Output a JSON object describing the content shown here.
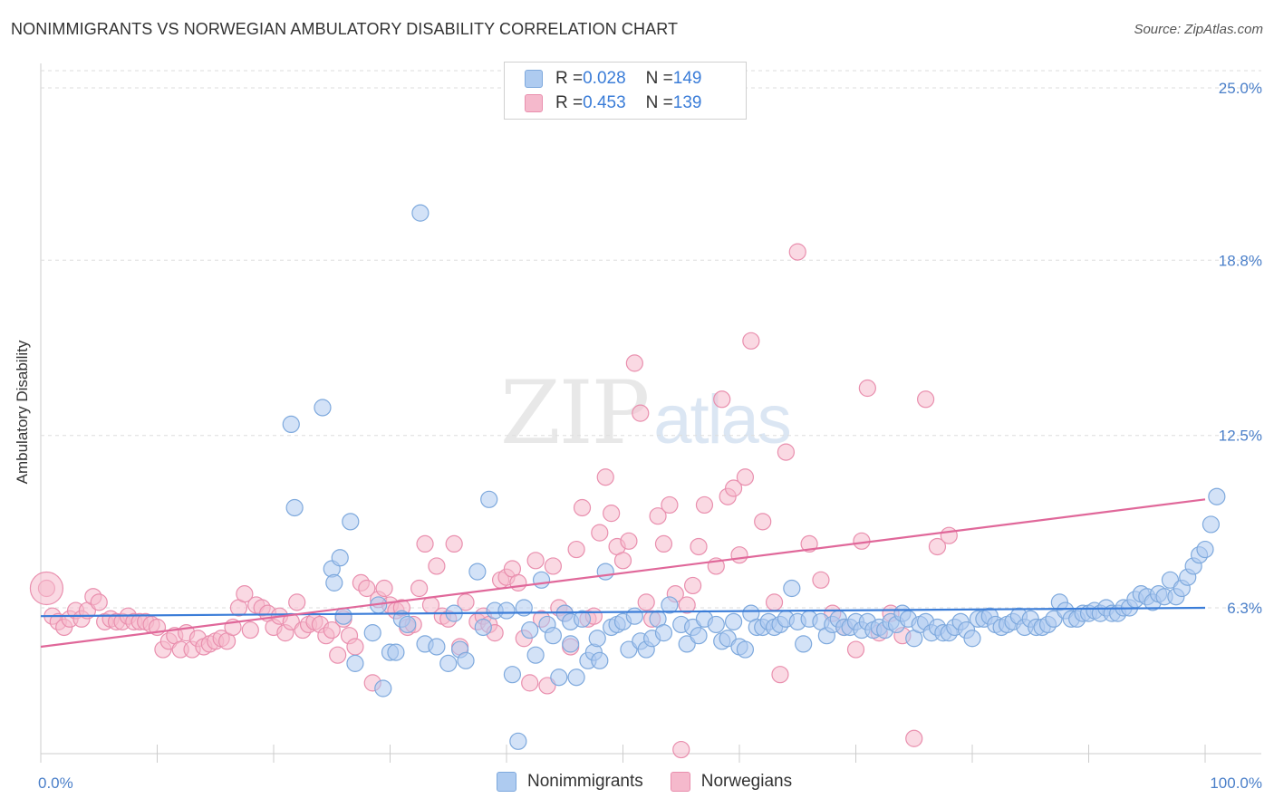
{
  "header": {
    "title": "NONIMMIGRANTS VS NORWEGIAN AMBULATORY DISABILITY CORRELATION CHART",
    "source": "Source: ZipAtlas.com"
  },
  "watermark": {
    "zip": "ZIP",
    "atlas": "atlas"
  },
  "legend": {
    "rows": [
      {
        "r_label": "R = ",
        "r_value": "0.028",
        "n_label": "N = ",
        "n_value": "149"
      },
      {
        "r_label": "R = ",
        "r_value": "0.453",
        "n_label": "N = ",
        "n_value": "139"
      }
    ]
  },
  "bottom_legend": {
    "items": [
      "Nonimmigrants",
      "Norwegians"
    ]
  },
  "colors": {
    "blue_fill": "#aecbf0",
    "blue_stroke": "#7ea9dd",
    "blue_line": "#3b7dd8",
    "pink_fill": "#f5b9cc",
    "pink_stroke": "#e98fae",
    "pink_line": "#e0689a",
    "tick_text": "#4a7fc9",
    "grid": "#dddddd"
  },
  "chart_data": {
    "type": "scatter",
    "title": "NONIMMIGRANTS VS NORWEGIAN AMBULATORY DISABILITY CORRELATION CHART",
    "xlabel": "",
    "ylabel": "Ambulatory Disability",
    "xlim": [
      0,
      100
    ],
    "ylim": [
      0,
      26
    ],
    "x_tick_labels": [
      "0.0%",
      "100.0%"
    ],
    "y_ticks": [
      6.3,
      12.5,
      18.8,
      25.0
    ],
    "y_tick_labels": [
      "6.3%",
      "12.5%",
      "18.8%",
      "25.0%"
    ],
    "grid": "horizontal dashed",
    "legend_position": "top-center",
    "series": [
      {
        "name": "Nonimmigrants",
        "trend": [
          [
            0,
            6.0
          ],
          [
            100,
            6.3
          ]
        ],
        "points": [
          [
            21.5,
            12.9
          ],
          [
            21.8,
            9.9
          ],
          [
            24.2,
            13.5
          ],
          [
            25.0,
            7.7
          ],
          [
            25.2,
            7.2
          ],
          [
            25.7,
            8.1
          ],
          [
            26.0,
            6.0
          ],
          [
            26.6,
            9.4
          ],
          [
            27.0,
            4.3
          ],
          [
            28.5,
            5.4
          ],
          [
            29.0,
            6.4
          ],
          [
            29.4,
            3.4
          ],
          [
            30.0,
            4.7
          ],
          [
            30.5,
            4.7
          ],
          [
            31.0,
            5.9
          ],
          [
            31.5,
            5.7
          ],
          [
            32.6,
            20.5
          ],
          [
            33.0,
            5.0
          ],
          [
            34.0,
            4.9
          ],
          [
            35.0,
            4.3
          ],
          [
            35.5,
            6.1
          ],
          [
            36.0,
            4.8
          ],
          [
            36.5,
            4.4
          ],
          [
            37.5,
            7.6
          ],
          [
            38.0,
            5.6
          ],
          [
            38.5,
            10.2
          ],
          [
            39.0,
            6.2
          ],
          [
            40.0,
            6.2
          ],
          [
            40.5,
            3.9
          ],
          [
            41.0,
            1.5
          ],
          [
            41.5,
            6.3
          ],
          [
            42.0,
            5.5
          ],
          [
            42.5,
            4.6
          ],
          [
            43.0,
            7.3
          ],
          [
            43.5,
            5.7
          ],
          [
            44.0,
            5.3
          ],
          [
            44.5,
            3.8
          ],
          [
            45.0,
            6.1
          ],
          [
            45.5,
            5.0
          ],
          [
            45.5,
            5.8
          ],
          [
            46.0,
            3.8
          ],
          [
            46.5,
            5.9
          ],
          [
            47.0,
            4.4
          ],
          [
            47.5,
            4.7
          ],
          [
            47.8,
            5.2
          ],
          [
            48.0,
            4.4
          ],
          [
            48.5,
            7.6
          ],
          [
            49.0,
            5.6
          ],
          [
            49.5,
            5.7
          ],
          [
            50.0,
            5.8
          ],
          [
            50.5,
            4.8
          ],
          [
            51.0,
            6.0
          ],
          [
            51.5,
            5.1
          ],
          [
            52.0,
            4.8
          ],
          [
            52.5,
            5.2
          ],
          [
            53.0,
            5.9
          ],
          [
            53.5,
            5.4
          ],
          [
            54.0,
            6.4
          ],
          [
            55.0,
            5.7
          ],
          [
            55.5,
            5.0
          ],
          [
            56.0,
            5.6
          ],
          [
            56.5,
            5.3
          ],
          [
            57.0,
            5.9
          ],
          [
            58.0,
            5.7
          ],
          [
            58.5,
            5.1
          ],
          [
            59.0,
            5.2
          ],
          [
            59.5,
            5.8
          ],
          [
            60.0,
            4.9
          ],
          [
            60.5,
            4.8
          ],
          [
            61.0,
            6.1
          ],
          [
            61.5,
            5.6
          ],
          [
            62.0,
            5.6
          ],
          [
            62.5,
            5.8
          ],
          [
            63.0,
            5.6
          ],
          [
            63.5,
            5.7
          ],
          [
            64.0,
            5.9
          ],
          [
            64.5,
            7.0
          ],
          [
            65.0,
            5.8
          ],
          [
            65.5,
            5.0
          ],
          [
            66.0,
            5.9
          ],
          [
            67.0,
            5.8
          ],
          [
            67.5,
            5.3
          ],
          [
            68.0,
            5.7
          ],
          [
            68.5,
            5.9
          ],
          [
            69.0,
            5.6
          ],
          [
            69.5,
            5.6
          ],
          [
            70.0,
            5.8
          ],
          [
            70.5,
            5.5
          ],
          [
            71.0,
            5.8
          ],
          [
            71.5,
            5.5
          ],
          [
            72.0,
            5.6
          ],
          [
            72.5,
            5.5
          ],
          [
            73.0,
            5.8
          ],
          [
            73.5,
            5.7
          ],
          [
            74.0,
            6.1
          ],
          [
            74.5,
            5.9
          ],
          [
            75.0,
            5.2
          ],
          [
            75.5,
            5.7
          ],
          [
            76.0,
            5.8
          ],
          [
            76.5,
            5.4
          ],
          [
            77.0,
            5.6
          ],
          [
            77.5,
            5.4
          ],
          [
            78.0,
            5.4
          ],
          [
            78.5,
            5.6
          ],
          [
            79.0,
            5.8
          ],
          [
            79.5,
            5.5
          ],
          [
            80.0,
            5.2
          ],
          [
            80.5,
            5.9
          ],
          [
            81.0,
            5.9
          ],
          [
            81.5,
            6.0
          ],
          [
            82.0,
            5.7
          ],
          [
            82.5,
            5.6
          ],
          [
            83.0,
            5.7
          ],
          [
            83.5,
            5.8
          ],
          [
            84.0,
            6.0
          ],
          [
            84.5,
            5.6
          ],
          [
            85.0,
            5.9
          ],
          [
            85.5,
            5.6
          ],
          [
            86.0,
            5.6
          ],
          [
            86.5,
            5.7
          ],
          [
            87.0,
            5.9
          ],
          [
            87.5,
            6.5
          ],
          [
            88.0,
            6.2
          ],
          [
            88.5,
            5.9
          ],
          [
            89.0,
            5.9
          ],
          [
            89.5,
            6.1
          ],
          [
            90.0,
            6.1
          ],
          [
            90.5,
            6.2
          ],
          [
            91.0,
            6.1
          ],
          [
            91.5,
            6.3
          ],
          [
            92.0,
            6.1
          ],
          [
            92.5,
            6.1
          ],
          [
            93.0,
            6.3
          ],
          [
            93.5,
            6.3
          ],
          [
            94.0,
            6.6
          ],
          [
            94.5,
            6.8
          ],
          [
            95.0,
            6.7
          ],
          [
            95.5,
            6.5
          ],
          [
            96.0,
            6.8
          ],
          [
            96.5,
            6.7
          ],
          [
            97.0,
            7.3
          ],
          [
            97.5,
            6.7
          ],
          [
            98.0,
            7.0
          ],
          [
            98.5,
            7.4
          ],
          [
            99.0,
            7.8
          ],
          [
            99.5,
            8.2
          ],
          [
            100.0,
            8.4
          ],
          [
            100.5,
            9.3
          ],
          [
            101.0,
            10.3
          ]
        ]
      },
      {
        "name": "Norwegians",
        "trend": [
          [
            0,
            4.9
          ],
          [
            100,
            10.2
          ]
        ],
        "points": [
          [
            0.5,
            7.0
          ],
          [
            1.0,
            6.0
          ],
          [
            1.5,
            5.8
          ],
          [
            2.0,
            5.6
          ],
          [
            2.5,
            5.9
          ],
          [
            3.0,
            6.2
          ],
          [
            3.5,
            5.9
          ],
          [
            4.0,
            6.2
          ],
          [
            4.5,
            6.7
          ],
          [
            5.0,
            6.5
          ],
          [
            5.5,
            5.8
          ],
          [
            6.0,
            5.9
          ],
          [
            6.5,
            5.8
          ],
          [
            7.0,
            5.8
          ],
          [
            7.5,
            6.0
          ],
          [
            8.0,
            5.8
          ],
          [
            8.5,
            5.8
          ],
          [
            9.0,
            5.8
          ],
          [
            9.5,
            5.7
          ],
          [
            10.0,
            5.6
          ],
          [
            10.5,
            4.8
          ],
          [
            11.0,
            5.1
          ],
          [
            11.5,
            5.3
          ],
          [
            12.0,
            4.8
          ],
          [
            12.5,
            5.4
          ],
          [
            13.0,
            4.8
          ],
          [
            13.5,
            5.2
          ],
          [
            14.0,
            4.9
          ],
          [
            14.5,
            5.0
          ],
          [
            15.0,
            5.1
          ],
          [
            15.5,
            5.2
          ],
          [
            16.0,
            5.1
          ],
          [
            16.5,
            5.6
          ],
          [
            17.0,
            6.3
          ],
          [
            17.5,
            6.8
          ],
          [
            18.0,
            5.5
          ],
          [
            18.5,
            6.4
          ],
          [
            19.0,
            6.3
          ],
          [
            19.5,
            6.1
          ],
          [
            20.0,
            5.6
          ],
          [
            20.5,
            6.0
          ],
          [
            21.0,
            5.4
          ],
          [
            21.5,
            5.8
          ],
          [
            22.0,
            6.5
          ],
          [
            22.5,
            5.5
          ],
          [
            23.0,
            5.7
          ],
          [
            23.5,
            5.8
          ],
          [
            24.0,
            5.7
          ],
          [
            24.5,
            5.3
          ],
          [
            25.0,
            5.5
          ],
          [
            25.5,
            4.6
          ],
          [
            26.0,
            5.9
          ],
          [
            26.5,
            5.3
          ],
          [
            27.0,
            4.9
          ],
          [
            27.5,
            7.2
          ],
          [
            28.0,
            7.0
          ],
          [
            28.5,
            3.6
          ],
          [
            29.0,
            6.6
          ],
          [
            29.5,
            7.0
          ],
          [
            30.0,
            6.4
          ],
          [
            30.5,
            6.2
          ],
          [
            31.0,
            6.3
          ],
          [
            31.5,
            5.6
          ],
          [
            32.0,
            5.7
          ],
          [
            32.5,
            7.0
          ],
          [
            33.0,
            8.6
          ],
          [
            33.5,
            6.4
          ],
          [
            34.0,
            7.8
          ],
          [
            34.5,
            6.0
          ],
          [
            35.0,
            5.9
          ],
          [
            35.5,
            8.6
          ],
          [
            36.0,
            4.9
          ],
          [
            36.5,
            6.5
          ],
          [
            37.5,
            5.8
          ],
          [
            38.0,
            6.0
          ],
          [
            38.5,
            5.7
          ],
          [
            39.0,
            5.4
          ],
          [
            39.5,
            7.3
          ],
          [
            40.0,
            7.4
          ],
          [
            40.5,
            7.7
          ],
          [
            41.0,
            7.2
          ],
          [
            41.5,
            5.2
          ],
          [
            42.0,
            3.6
          ],
          [
            42.5,
            8.0
          ],
          [
            43.0,
            5.9
          ],
          [
            43.5,
            3.5
          ],
          [
            44.0,
            7.8
          ],
          [
            44.5,
            6.3
          ],
          [
            45.0,
            6.1
          ],
          [
            45.5,
            4.9
          ],
          [
            46.0,
            8.4
          ],
          [
            46.5,
            9.9
          ],
          [
            47.0,
            5.9
          ],
          [
            47.5,
            6.0
          ],
          [
            48.0,
            9.0
          ],
          [
            48.5,
            11.0
          ],
          [
            49.0,
            9.7
          ],
          [
            49.5,
            8.5
          ],
          [
            50.0,
            8.0
          ],
          [
            50.5,
            8.7
          ],
          [
            51.0,
            15.1
          ],
          [
            51.5,
            13.3
          ],
          [
            52.0,
            6.5
          ],
          [
            52.5,
            5.9
          ],
          [
            53.0,
            9.6
          ],
          [
            53.5,
            8.6
          ],
          [
            54.0,
            10.0
          ],
          [
            54.5,
            6.8
          ],
          [
            55.0,
            1.2
          ],
          [
            55.5,
            6.4
          ],
          [
            56.0,
            7.1
          ],
          [
            56.5,
            8.5
          ],
          [
            57.0,
            10.0
          ],
          [
            58.0,
            7.8
          ],
          [
            58.5,
            13.8
          ],
          [
            59.0,
            10.3
          ],
          [
            59.5,
            10.6
          ],
          [
            60.0,
            8.2
          ],
          [
            60.5,
            11.0
          ],
          [
            61.0,
            15.9
          ],
          [
            62.0,
            9.4
          ],
          [
            63.0,
            6.5
          ],
          [
            63.5,
            3.9
          ],
          [
            64.0,
            11.9
          ],
          [
            65.0,
            19.1
          ],
          [
            66.0,
            8.6
          ],
          [
            67.0,
            7.3
          ],
          [
            68.0,
            6.1
          ],
          [
            69.0,
            5.6
          ],
          [
            70.0,
            4.8
          ],
          [
            70.5,
            8.7
          ],
          [
            71.0,
            14.2
          ],
          [
            72.0,
            5.4
          ],
          [
            73.0,
            6.1
          ],
          [
            74.0,
            5.3
          ],
          [
            75.0,
            1.6
          ],
          [
            76.0,
            13.8
          ],
          [
            77.0,
            8.5
          ],
          [
            78.0,
            8.9
          ]
        ]
      }
    ]
  }
}
